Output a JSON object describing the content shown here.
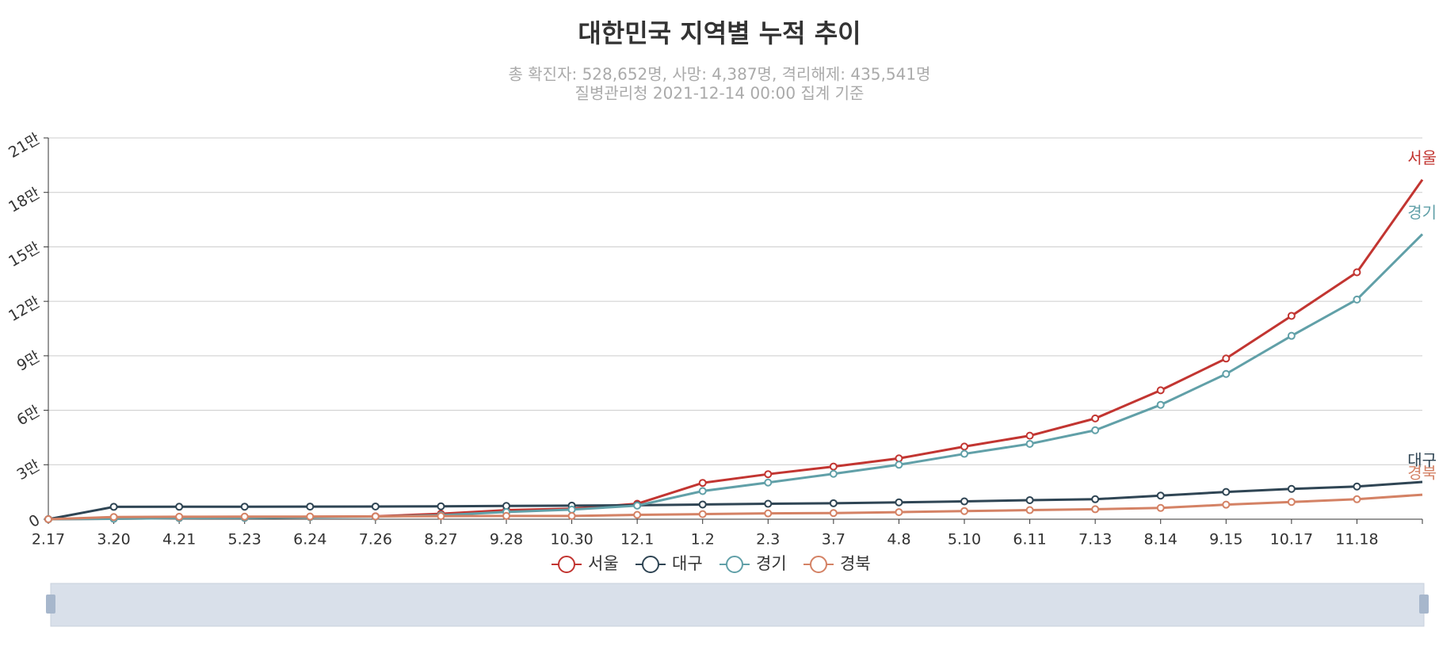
{
  "chart_data": {
    "type": "line",
    "title": "대한민국 지역별 누적 추이",
    "subtitle": [
      "총 확진자: 528,652명, 사망: 4,387명, 격리해제: 435,541명",
      "질병관리청 2021-12-14 00:00 집계 기준"
    ],
    "categories": [
      "2.17",
      "3.20",
      "4.21",
      "5.23",
      "6.24",
      "7.26",
      "8.27",
      "9.28",
      "10.30",
      "12.1",
      "1.2",
      "2.3",
      "3.7",
      "4.8",
      "5.10",
      "6.11",
      "7.13",
      "8.14",
      "9.15",
      "10.17",
      "11.18",
      null
    ],
    "series": [
      {
        "name": "서울",
        "color": "#c23531",
        "values": [
          0,
          300,
          600,
          750,
          1300,
          1600,
          3000,
          5000,
          5800,
          8500,
          20000,
          24800,
          29000,
          33500,
          40000,
          46000,
          55500,
          71000,
          88500,
          112000,
          136000,
          187000
        ]
      },
      {
        "name": "대구",
        "color": "#2f4554",
        "values": [
          0,
          6800,
          6850,
          6900,
          6950,
          7000,
          7100,
          7300,
          7500,
          7700,
          8100,
          8500,
          8800,
          9300,
          9800,
          10500,
          11000,
          13000,
          15000,
          16700,
          18000,
          20500
        ]
      },
      {
        "name": "경기",
        "color": "#61a0a8",
        "values": [
          0,
          200,
          600,
          700,
          1100,
          1400,
          2200,
          4000,
          5300,
          7500,
          15500,
          20200,
          25000,
          30000,
          36000,
          41500,
          49000,
          63000,
          80000,
          101000,
          121000,
          157000
        ]
      },
      {
        "name": "경북",
        "color": "#d48265",
        "values": [
          0,
          1200,
          1350,
          1400,
          1450,
          1550,
          1700,
          1800,
          1800,
          2400,
          2800,
          3200,
          3400,
          3900,
          4500,
          5000,
          5500,
          6200,
          8000,
          9500,
          11000,
          13500
        ]
      }
    ],
    "ylim": [
      0,
      210000
    ],
    "yticks": [
      0,
      {
        "value": 30000,
        "label": "3만"
      },
      {
        "value": 60000,
        "label": "6만"
      },
      {
        "value": 90000,
        "label": "9만"
      },
      {
        "value": 120000,
        "label": "12만"
      },
      {
        "value": 150000,
        "label": "15만"
      },
      {
        "value": 180000,
        "label": "18만"
      },
      {
        "value": 210000,
        "label": "21만"
      }
    ],
    "grid": true
  }
}
